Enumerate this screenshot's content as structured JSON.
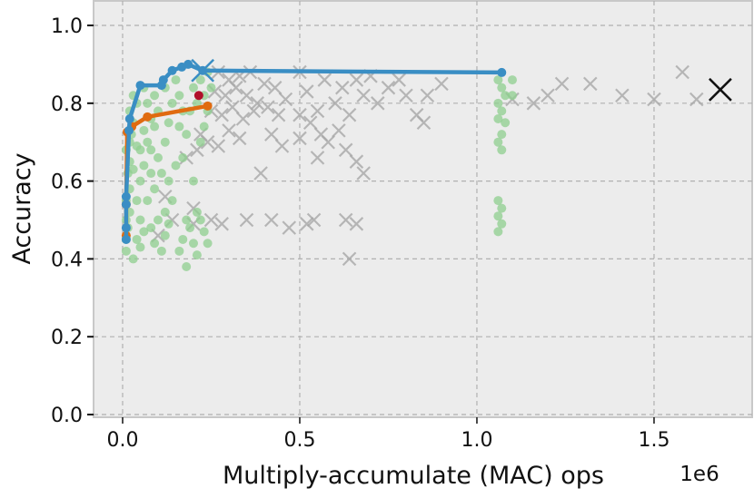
{
  "chart_data": {
    "type": "scatter",
    "title": "",
    "xlabel": "Multiply-accumulate (MAC) ops",
    "x_offset_label": "1e6",
    "ylabel": "Accuracy",
    "xlim": [
      -0.082,
      1.777
    ],
    "ylim": [
      -0.007,
      1.063
    ],
    "xticks": [
      0.0,
      0.5,
      1.0,
      1.5
    ],
    "xtick_labels": [
      "0.0",
      "0.5",
      "1.0",
      "1.5"
    ],
    "yticks": [
      0.0,
      0.2,
      0.4,
      0.6,
      0.8,
      1.0
    ],
    "ytick_labels": [
      "0.0",
      "0.2",
      "0.4",
      "0.6",
      "0.8",
      "1.0"
    ],
    "grid": true,
    "colors": {
      "background": "#ececec",
      "grid": "#b0b0b0",
      "gray_x": "#a8a8a8",
      "green": "#8fcf8f",
      "blue": "#3a8ec4",
      "orange": "#e06b10",
      "red": "#b0102a",
      "black_x": "#111111"
    },
    "series": [
      {
        "marker": "x",
        "color": "gray",
        "points": [
          [
            0.27,
            0.88
          ],
          [
            0.3,
            0.86
          ],
          [
            0.33,
            0.87
          ],
          [
            0.36,
            0.88
          ],
          [
            0.26,
            0.83
          ],
          [
            0.29,
            0.82
          ],
          [
            0.32,
            0.84
          ],
          [
            0.35,
            0.82
          ],
          [
            0.38,
            0.8
          ],
          [
            0.4,
            0.85
          ],
          [
            0.43,
            0.84
          ],
          [
            0.25,
            0.78
          ],
          [
            0.28,
            0.77
          ],
          [
            0.31,
            0.79
          ],
          [
            0.34,
            0.76
          ],
          [
            0.37,
            0.78
          ],
          [
            0.41,
            0.79
          ],
          [
            0.44,
            0.77
          ],
          [
            0.3,
            0.73
          ],
          [
            0.33,
            0.71
          ],
          [
            0.24,
            0.7
          ],
          [
            0.27,
            0.69
          ],
          [
            0.21,
            0.68
          ],
          [
            0.18,
            0.66
          ],
          [
            0.22,
            0.72
          ],
          [
            0.42,
            0.72
          ],
          [
            0.46,
            0.81
          ],
          [
            0.5,
            0.88
          ],
          [
            0.52,
            0.83
          ],
          [
            0.55,
            0.78
          ],
          [
            0.57,
            0.86
          ],
          [
            0.6,
            0.8
          ],
          [
            0.62,
            0.84
          ],
          [
            0.64,
            0.77
          ],
          [
            0.66,
            0.86
          ],
          [
            0.68,
            0.82
          ],
          [
            0.7,
            0.87
          ],
          [
            0.72,
            0.8
          ],
          [
            0.75,
            0.84
          ],
          [
            0.78,
            0.86
          ],
          [
            0.8,
            0.82
          ],
          [
            0.83,
            0.77
          ],
          [
            0.85,
            0.75
          ],
          [
            0.5,
            0.77
          ],
          [
            0.53,
            0.75
          ],
          [
            0.56,
            0.72
          ],
          [
            0.58,
            0.7
          ],
          [
            0.61,
            0.73
          ],
          [
            0.63,
            0.68
          ],
          [
            0.66,
            0.65
          ],
          [
            0.55,
            0.66
          ],
          [
            0.5,
            0.71
          ],
          [
            0.45,
            0.69
          ],
          [
            0.39,
            0.62
          ],
          [
            0.68,
            0.62
          ],
          [
            0.14,
            0.5
          ],
          [
            0.2,
            0.49
          ],
          [
            0.25,
            0.5
          ],
          [
            0.35,
            0.5
          ],
          [
            0.42,
            0.5
          ],
          [
            0.47,
            0.48
          ],
          [
            0.52,
            0.49
          ],
          [
            0.54,
            0.5
          ],
          [
            0.63,
            0.5
          ],
          [
            0.66,
            0.49
          ],
          [
            0.2,
            0.53
          ],
          [
            0.28,
            0.49
          ],
          [
            0.64,
            0.4
          ],
          [
            0.12,
            0.56
          ],
          [
            0.1,
            0.46
          ],
          [
            0.86,
            0.82
          ],
          [
            0.9,
            0.85
          ],
          [
            1.1,
            0.81
          ],
          [
            1.16,
            0.8
          ],
          [
            1.2,
            0.82
          ],
          [
            1.24,
            0.85
          ],
          [
            1.32,
            0.85
          ],
          [
            1.41,
            0.82
          ],
          [
            1.5,
            0.81
          ],
          [
            1.58,
            0.88
          ],
          [
            1.62,
            0.81
          ]
        ]
      },
      {
        "marker": "o",
        "color": "green",
        "points": [
          [
            0.01,
            0.42
          ],
          [
            0.01,
            0.45
          ],
          [
            0.015,
            0.48
          ],
          [
            0.01,
            0.5
          ],
          [
            0.02,
            0.52
          ],
          [
            0.01,
            0.55
          ],
          [
            0.02,
            0.58
          ],
          [
            0.015,
            0.62
          ],
          [
            0.02,
            0.65
          ],
          [
            0.01,
            0.68
          ],
          [
            0.02,
            0.7
          ],
          [
            0.025,
            0.72
          ],
          [
            0.03,
            0.75
          ],
          [
            0.02,
            0.78
          ],
          [
            0.03,
            0.82
          ],
          [
            0.04,
            0.8
          ],
          [
            0.04,
            0.45
          ],
          [
            0.05,
            0.43
          ],
          [
            0.03,
            0.4
          ],
          [
            0.05,
            0.5
          ],
          [
            0.06,
            0.47
          ],
          [
            0.04,
            0.55
          ],
          [
            0.05,
            0.6
          ],
          [
            0.06,
            0.64
          ],
          [
            0.05,
            0.68
          ],
          [
            0.07,
            0.7
          ],
          [
            0.06,
            0.73
          ],
          [
            0.08,
            0.76
          ],
          [
            0.07,
            0.8
          ],
          [
            0.06,
            0.84
          ],
          [
            0.09,
            0.82
          ],
          [
            0.1,
            0.78
          ],
          [
            0.09,
            0.74
          ],
          [
            0.08,
            0.68
          ],
          [
            0.1,
            0.66
          ],
          [
            0.11,
            0.62
          ],
          [
            0.09,
            0.58
          ],
          [
            0.1,
            0.5
          ],
          [
            0.08,
            0.48
          ],
          [
            0.09,
            0.44
          ],
          [
            0.11,
            0.42
          ],
          [
            0.12,
            0.46
          ],
          [
            0.13,
            0.49
          ],
          [
            0.12,
            0.52
          ],
          [
            0.14,
            0.55
          ],
          [
            0.13,
            0.6
          ],
          [
            0.12,
            0.7
          ],
          [
            0.13,
            0.75
          ],
          [
            0.14,
            0.8
          ],
          [
            0.12,
            0.84
          ],
          [
            0.15,
            0.86
          ],
          [
            0.16,
            0.82
          ],
          [
            0.17,
            0.78
          ],
          [
            0.16,
            0.74
          ],
          [
            0.18,
            0.72
          ],
          [
            0.17,
            0.66
          ],
          [
            0.15,
            0.64
          ],
          [
            0.18,
            0.5
          ],
          [
            0.17,
            0.45
          ],
          [
            0.16,
            0.42
          ],
          [
            0.18,
            0.38
          ],
          [
            0.2,
            0.44
          ],
          [
            0.19,
            0.48
          ],
          [
            0.21,
            0.52
          ],
          [
            0.2,
            0.6
          ],
          [
            0.19,
            0.78
          ],
          [
            0.2,
            0.84
          ],
          [
            0.22,
            0.86
          ],
          [
            0.23,
            0.82
          ],
          [
            0.21,
            0.8
          ],
          [
            0.24,
            0.78
          ],
          [
            0.23,
            0.74
          ],
          [
            0.22,
            0.7
          ],
          [
            0.25,
            0.84
          ],
          [
            0.24,
            0.88
          ],
          [
            0.23,
            0.47
          ],
          [
            0.24,
            0.44
          ],
          [
            0.22,
            0.5
          ],
          [
            0.21,
            0.41
          ],
          [
            0.07,
            0.55
          ],
          [
            0.08,
            0.62
          ],
          [
            0.03,
            0.63
          ],
          [
            0.04,
            0.69
          ],
          [
            1.06,
            0.86
          ],
          [
            1.07,
            0.84
          ],
          [
            1.08,
            0.82
          ],
          [
            1.06,
            0.8
          ],
          [
            1.07,
            0.78
          ],
          [
            1.06,
            0.76
          ],
          [
            1.08,
            0.75
          ],
          [
            1.07,
            0.72
          ],
          [
            1.06,
            0.7
          ],
          [
            1.07,
            0.68
          ],
          [
            1.1,
            0.86
          ],
          [
            1.1,
            0.82
          ],
          [
            1.06,
            0.55
          ],
          [
            1.07,
            0.53
          ],
          [
            1.06,
            0.51
          ],
          [
            1.07,
            0.49
          ],
          [
            1.06,
            0.47
          ]
        ]
      },
      {
        "marker": "line-o",
        "color": "orange",
        "points": [
          [
            0.01,
            0.46
          ],
          [
            0.01,
            0.54
          ],
          [
            0.013,
            0.726
          ],
          [
            0.026,
            0.74
          ],
          [
            0.07,
            0.765
          ],
          [
            0.24,
            0.793
          ]
        ]
      },
      {
        "marker": "line-o",
        "color": "blue",
        "points": [
          [
            0.01,
            0.45
          ],
          [
            0.01,
            0.48
          ],
          [
            0.01,
            0.54
          ],
          [
            0.01,
            0.56
          ],
          [
            0.018,
            0.73
          ],
          [
            0.02,
            0.76
          ],
          [
            0.05,
            0.846
          ],
          [
            0.11,
            0.846
          ],
          [
            0.115,
            0.86
          ],
          [
            0.14,
            0.884
          ],
          [
            0.167,
            0.893
          ],
          [
            0.185,
            0.9
          ],
          [
            0.226,
            0.884
          ],
          [
            1.07,
            0.879
          ]
        ]
      },
      {
        "marker": "big-x",
        "color": "blue",
        "points": [
          [
            0.226,
            0.884
          ]
        ]
      },
      {
        "marker": "o",
        "color": "red",
        "points": [
          [
            0.215,
            0.82
          ]
        ]
      },
      {
        "marker": "big-x",
        "color": "black",
        "points": [
          [
            1.687,
            0.835
          ]
        ]
      }
    ]
  }
}
